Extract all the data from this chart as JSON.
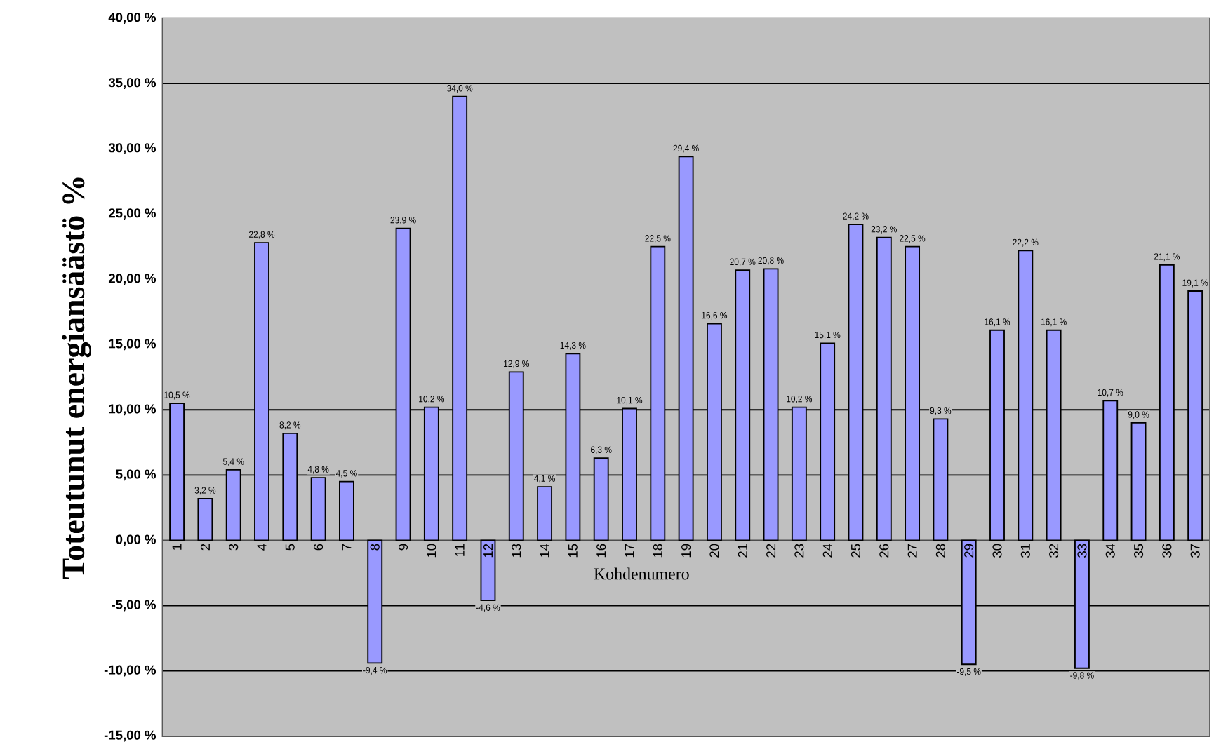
{
  "chart_data": {
    "type": "bar",
    "ylabel": "Toteutunut energiansäästö %",
    "xlabel": "Kohdenumero",
    "categories": [
      "1",
      "2",
      "3",
      "4",
      "5",
      "6",
      "7",
      "8",
      "9",
      "10",
      "11",
      "12",
      "13",
      "14",
      "15",
      "16",
      "17",
      "18",
      "19",
      "20",
      "21",
      "22",
      "23",
      "24",
      "25",
      "26",
      "27",
      "28",
      "29",
      "30",
      "31",
      "32",
      "33",
      "34",
      "35",
      "36",
      "37"
    ],
    "values": [
      10.5,
      3.2,
      5.4,
      22.8,
      8.2,
      4.8,
      4.5,
      -9.4,
      23.9,
      10.2,
      34.0,
      -4.6,
      12.9,
      4.1,
      14.3,
      6.3,
      10.1,
      22.5,
      29.4,
      16.6,
      20.7,
      20.8,
      10.2,
      15.1,
      24.2,
      23.2,
      22.5,
      9.3,
      -9.5,
      16.1,
      22.2,
      16.1,
      -9.8,
      10.7,
      9.0,
      21.1,
      19.1
    ],
    "value_labels": [
      "10,5 %",
      "3,2 %",
      "5,4 %",
      "22,8 %",
      "8,2 %",
      "4,8 %",
      "4,5 %",
      "-9,4 %",
      "23,9 %",
      "10,2 %",
      "34,0 %",
      "-4,6 %",
      "12,9 %",
      "4,1 %",
      "14,3 %",
      "6,3 %",
      "10,1 %",
      "22,5 %",
      "29,4 %",
      "16,6 %",
      "20,7 %",
      "20,8 %",
      "10,2 %",
      "15,1 %",
      "24,2 %",
      "23,2 %",
      "22,5 %",
      "9,3 %",
      "-9,5 %",
      "16,1 %",
      "22,2 %",
      "16,1 %",
      "-9,8 %",
      "10,7 %",
      "9,0 %",
      "21,1 %",
      "19,1 %"
    ],
    "color": "#9999ff",
    "ylim": [
      -15,
      40
    ],
    "yticks": [
      {
        "value": -15,
        "label": "-15,00 %"
      },
      {
        "value": -10,
        "label": "-10,00 %"
      },
      {
        "value": -5,
        "label": "-5,00 %"
      },
      {
        "value": 0,
        "label": "0,00 %"
      },
      {
        "value": 5,
        "label": "5,00 %"
      },
      {
        "value": 10,
        "label": "10,00 %"
      },
      {
        "value": 15,
        "label": "15,00 %"
      },
      {
        "value": 20,
        "label": "20,00 %"
      },
      {
        "value": 25,
        "label": "25,00 %"
      },
      {
        "value": 30,
        "label": "30,00 %"
      },
      {
        "value": 35,
        "label": "35,00 %"
      },
      {
        "value": 40,
        "label": "40,00 %"
      }
    ],
    "ref_lines": [
      {
        "axis": "y",
        "value": 35,
        "color": "#000000"
      },
      {
        "axis": "y",
        "value": 10,
        "color": "#000000"
      },
      {
        "axis": "y",
        "value": 5,
        "color": "#000000"
      },
      {
        "axis": "y",
        "value": -5,
        "color": "#000000"
      },
      {
        "axis": "y",
        "value": -10,
        "color": "#000000"
      }
    ]
  }
}
